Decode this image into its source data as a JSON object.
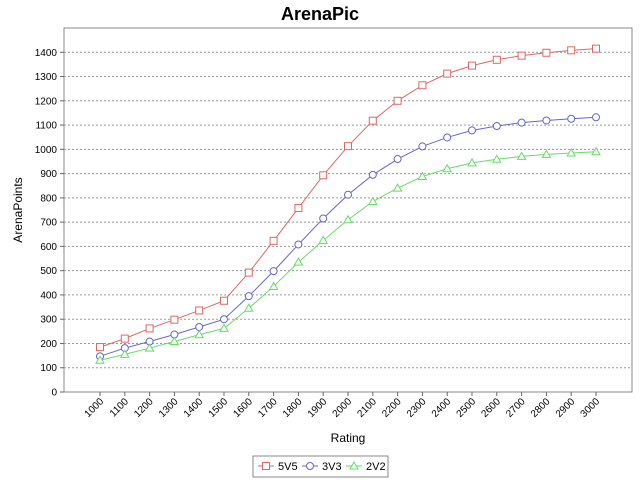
{
  "chart_data": {
    "type": "line",
    "title": "ArenaPic",
    "xlabel": "Rating",
    "ylabel": "ArenaPoints",
    "categories": [
      "1000",
      "1100",
      "1200",
      "1300",
      "1400",
      "1500",
      "1600",
      "1700",
      "1800",
      "1900",
      "2000",
      "2100",
      "2200",
      "2300",
      "2400",
      "2500",
      "2600",
      "2700",
      "2800",
      "2900",
      "3000"
    ],
    "ylim": [
      0,
      1500
    ],
    "yticks": [
      0,
      100,
      200,
      300,
      400,
      500,
      600,
      700,
      800,
      900,
      1000,
      1100,
      1200,
      1300,
      1400
    ],
    "grid": true,
    "legend_position": "bottom",
    "series": [
      {
        "name": "5V5",
        "color": "#e06666",
        "marker": "square",
        "values": [
          185,
          220,
          262,
          298,
          336,
          376,
          492,
          623,
          758,
          893,
          1013,
          1118,
          1200,
          1264,
          1312,
          1345,
          1369,
          1386,
          1398,
          1408,
          1415
        ]
      },
      {
        "name": "3V3",
        "color": "#6666cc",
        "marker": "circle",
        "values": [
          147,
          181,
          208,
          237,
          268,
          300,
          395,
          498,
          608,
          715,
          813,
          895,
          960,
          1012,
          1049,
          1078,
          1096,
          1110,
          1119,
          1126,
          1132
        ]
      },
      {
        "name": "2V2",
        "color": "#66dd66",
        "marker": "triangle",
        "values": [
          131,
          155,
          181,
          208,
          236,
          262,
          345,
          435,
          535,
          625,
          710,
          785,
          840,
          888,
          920,
          944,
          959,
          971,
          979,
          985,
          990
        ]
      }
    ]
  }
}
